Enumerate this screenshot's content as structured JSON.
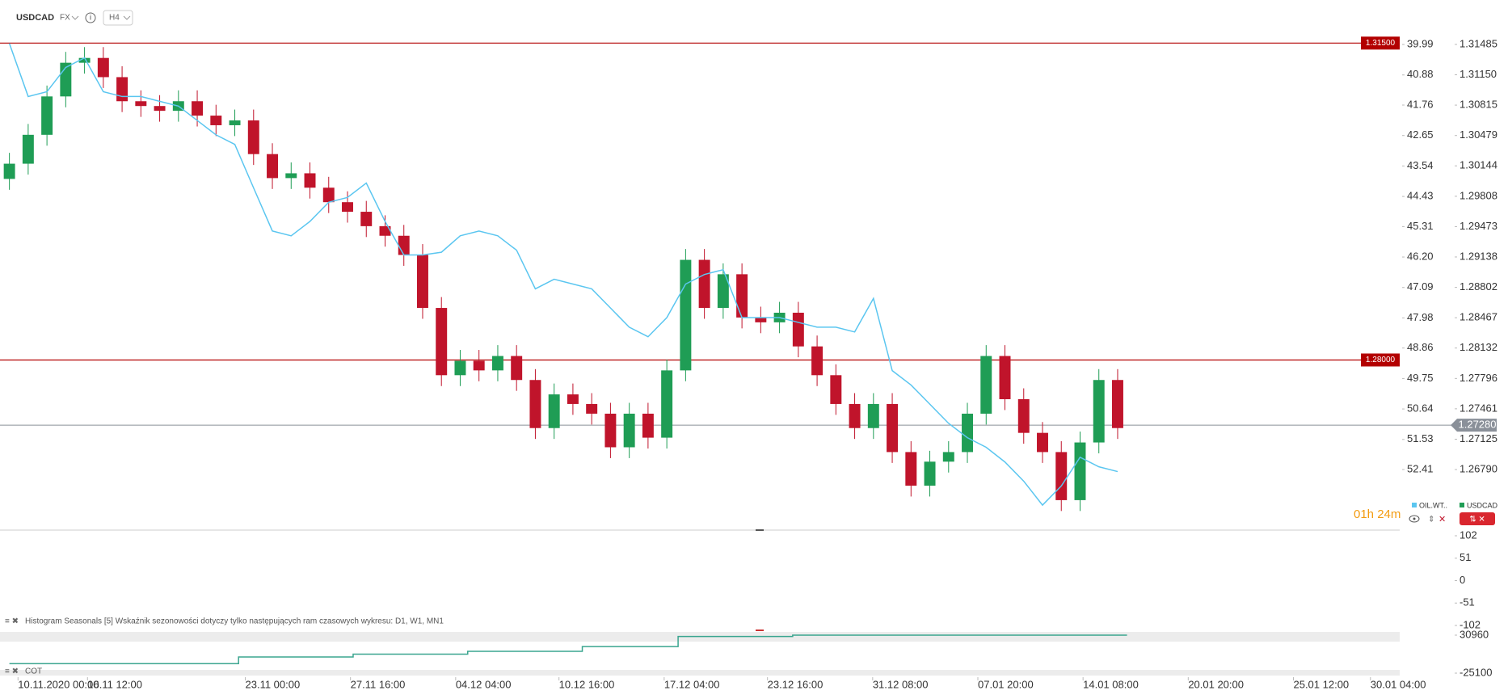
{
  "header": {
    "symbol": "USDCAD",
    "market": "FX",
    "interval": "H4"
  },
  "chart_data": [
    {
      "type": "candlestick",
      "countdown": "01h 24m",
      "xlim": [
        -0.5,
        73.5
      ],
      "xticks": [
        {
          "value": 0.2,
          "label": "10.11.2020  00:00"
        },
        {
          "value": 3.9,
          "label": "16.11  12:00"
        },
        {
          "value": 12.3,
          "label": "23.11  00:00"
        },
        {
          "value": 17.9,
          "label": "27.11  16:00"
        },
        {
          "value": 23.5,
          "label": "04.12  04:00"
        },
        {
          "value": 29.0,
          "label": "10.12  16:00"
        },
        {
          "value": 34.6,
          "label": "17.12  04:00"
        },
        {
          "value": 40.1,
          "label": "23.12  16:00"
        },
        {
          "value": 45.7,
          "label": "31.12  08:00"
        },
        {
          "value": 51.3,
          "label": "07.01  20:00"
        },
        {
          "value": 56.9,
          "label": "14.01  08:00"
        },
        {
          "value": 62.5,
          "label": "20.01  20:00"
        },
        {
          "value": 68.1,
          "label": "25.01  12:00"
        },
        {
          "value": 72.2,
          "label": "30.01  04:00"
        }
      ],
      "ylim": [
        1.26121,
        1.31976
      ],
      "yticks": [
        1.31485,
        {
          "value": 1.3115,
          "label": "1.31150"
        },
        1.30815,
        1.30479,
        1.30144,
        1.29808,
        1.29473,
        1.29138,
        1.28802,
        1.28467,
        1.28132,
        1.27796,
        1.27461,
        1.27125,
        {
          "value": 1.2679,
          "label": "1.26790"
        }
      ],
      "y2lim": [
        54.18,
        38.69
      ],
      "y2ticks": [
        39.99,
        40.88,
        41.76,
        42.65,
        43.54,
        44.43,
        45.31,
        {
          "value": 46.2,
          "label": "46.20"
        },
        47.09,
        47.98,
        48.86,
        49.75,
        50.64,
        51.53,
        52.41
      ],
      "levels": [
        {
          "value": 1.315,
          "label": "1.31500",
          "color": "#b30000"
        },
        {
          "value": 1.28,
          "label": "1.28000",
          "color": "#b30000"
        }
      ],
      "current": {
        "value": 1.2728,
        "label": "1.27280",
        "color": "#8a9099"
      },
      "series": [
        {
          "name": "USDCAD",
          "color": "#1f9d55",
          "down_color": "#c0142b",
          "ohlc": [
            [
              1.3,
              1.30288,
              1.2988,
              1.30168
            ],
            [
              1.30168,
              1.30607,
              1.30048,
              1.30487
            ],
            [
              1.30487,
              1.31031,
              1.30367,
              1.30911
            ],
            [
              1.30911,
              1.31403,
              1.30791,
              1.31283
            ],
            [
              1.31283,
              1.31456,
              1.31163,
              1.31336
            ],
            [
              1.31336,
              1.31456,
              1.31004,
              1.31124
            ],
            [
              1.31124,
              1.31244,
              1.30738,
              1.30858
            ],
            [
              1.30858,
              1.30978,
              1.30685,
              1.30805
            ],
            [
              1.30805,
              1.30925,
              1.30632,
              1.30752
            ],
            [
              1.30752,
              1.30978,
              1.30632,
              1.30858
            ],
            [
              1.30858,
              1.30978,
              1.30579,
              1.30699
            ],
            [
              1.30699,
              1.30819,
              1.30473,
              1.30593
            ],
            [
              1.30593,
              1.30766,
              1.30473,
              1.30646
            ],
            [
              1.30646,
              1.30766,
              1.30154,
              1.30274
            ],
            [
              1.30274,
              1.30394,
              1.29889,
              1.30009
            ],
            [
              1.30009,
              1.30182,
              1.29889,
              1.30062
            ],
            [
              1.30062,
              1.30182,
              1.29783,
              1.29903
            ],
            [
              1.29903,
              1.30023,
              1.29623,
              1.29743
            ],
            [
              1.29743,
              1.29863,
              1.29517,
              1.29637
            ],
            [
              1.29637,
              1.29757,
              1.29358,
              1.29478
            ],
            [
              1.29478,
              1.29598,
              1.29252,
              1.29372
            ],
            [
              1.29372,
              1.29492,
              1.2904,
              1.2916
            ],
            [
              1.2916,
              1.2928,
              1.28455,
              1.28575
            ],
            [
              1.28575,
              1.28695,
              1.27712,
              1.27832
            ],
            [
              1.27832,
              1.28111,
              1.27712,
              1.27991
            ],
            [
              1.27991,
              1.28111,
              1.27765,
              1.27885
            ],
            [
              1.27885,
              1.28164,
              1.27765,
              1.28044
            ],
            [
              1.28044,
              1.28164,
              1.27659,
              1.27779
            ],
            [
              1.27779,
              1.27899,
              1.27128,
              1.27248
            ],
            [
              1.27248,
              1.2774,
              1.27128,
              1.2762
            ],
            [
              1.2762,
              1.2774,
              1.27394,
              1.27514
            ],
            [
              1.27514,
              1.27634,
              1.27287,
              1.27407
            ],
            [
              1.27407,
              1.27527,
              1.26916,
              1.27036
            ],
            [
              1.27036,
              1.27527,
              1.26916,
              1.27407
            ],
            [
              1.27407,
              1.27527,
              1.27022,
              1.27142
            ],
            [
              1.27142,
              1.28005,
              1.27022,
              1.27885
            ],
            [
              1.27885,
              1.29226,
              1.27765,
              1.29106
            ],
            [
              1.29106,
              1.29226,
              1.28455,
              1.28575
            ],
            [
              1.28575,
              1.29067,
              1.28455,
              1.28947
            ],
            [
              1.28947,
              1.29067,
              1.28349,
              1.28469
            ],
            [
              1.28469,
              1.28589,
              1.28296,
              1.28416
            ],
            [
              1.28416,
              1.28642,
              1.28296,
              1.28522
            ],
            [
              1.28522,
              1.28642,
              1.2803,
              1.2815
            ],
            [
              1.2815,
              1.2827,
              1.27712,
              1.27832
            ],
            [
              1.27832,
              1.27952,
              1.27394,
              1.27514
            ],
            [
              1.27514,
              1.27634,
              1.27128,
              1.27248
            ],
            [
              1.27248,
              1.27634,
              1.27128,
              1.27514
            ],
            [
              1.27514,
              1.27634,
              1.26863,
              1.26983
            ],
            [
              1.26983,
              1.27103,
              1.26492,
              1.26612
            ],
            [
              1.26612,
              1.26997,
              1.26492,
              1.26877
            ],
            [
              1.26877,
              1.27103,
              1.26757,
              1.26983
            ],
            [
              1.26983,
              1.27527,
              1.26863,
              1.27407
            ],
            [
              1.27407,
              1.28164,
              1.27287,
              1.28044
            ],
            [
              1.28044,
              1.28164,
              1.27447,
              1.27567
            ],
            [
              1.27567,
              1.27687,
              1.27075,
              1.27195
            ],
            [
              1.27195,
              1.27315,
              1.26863,
              1.26983
            ],
            [
              1.26983,
              1.27103,
              1.26332,
              1.26452
            ],
            [
              1.26452,
              1.27209,
              1.26332,
              1.27089
            ],
            [
              1.27089,
              1.27899,
              1.26969,
              1.27779
            ],
            [
              1.27779,
              1.27899,
              1.27128,
              1.27248
            ]
          ]
        },
        {
          "name": "OIL.WT..",
          "type": "line",
          "axis": "y2",
          "color": "#5bc6f0",
          "values": [
            39.96,
            41.51,
            41.37,
            40.66,
            40.38,
            41.37,
            41.51,
            41.51,
            41.65,
            41.79,
            42.21,
            42.63,
            42.91,
            44.18,
            45.44,
            45.58,
            45.16,
            44.6,
            44.46,
            44.04,
            45.16,
            46.14,
            46.14,
            46.06,
            45.58,
            45.44,
            45.58,
            46.0,
            47.13,
            46.85,
            46.99,
            47.13,
            47.69,
            48.25,
            48.53,
            47.97,
            46.99,
            46.71,
            46.57,
            47.97,
            47.97,
            47.97,
            48.11,
            48.25,
            48.25,
            48.39,
            47.41,
            49.52,
            49.94,
            50.5,
            51.06,
            51.48,
            51.76,
            52.19,
            52.75,
            53.45,
            52.89,
            52.05,
            52.33,
            52.47
          ]
        }
      ]
    },
    {
      "type": "histogram",
      "title": "Histogram Seasonals [5] Wskaźnik sezonowości dotyczy tylko następujących ram czasowych wykresu: D1, W1, MN1",
      "ylim": [
        -102,
        102
      ],
      "yticks": [
        102,
        51,
        0,
        -51,
        -102
      ]
    },
    {
      "type": "step",
      "title": "COT",
      "xlim": [
        -0.5,
        73.5
      ],
      "ylim": [
        -25100,
        30960
      ],
      "yticks": [
        30960,
        -25100
      ],
      "series": [
        {
          "color": "#3aa58f",
          "x": [
            0,
            12.2,
            18.3,
            24.4,
            30.5,
            35.6,
            41.7,
            59.5
          ],
          "values": [
            -11085,
            -1275,
            2930,
            7135,
            14142,
            29000,
            30960,
            30960
          ]
        }
      ]
    }
  ]
}
